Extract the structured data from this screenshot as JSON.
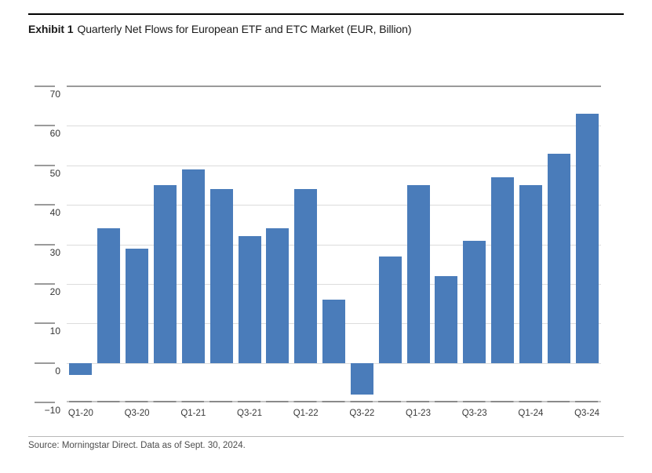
{
  "header": {
    "exhibit_label": "Exhibit 1",
    "title_rest": "Quarterly Net Flows for European ETF and ETC Market (EUR, Billion)"
  },
  "footer": {
    "source_text": "Source: Morningstar Direct. Data as of Sept. 30, 2024."
  },
  "colors": {
    "bar": "#4a7cba",
    "gridline": "#dcdcdc",
    "axis": "#9a9a9a",
    "text": "#333333"
  },
  "chart_data": {
    "type": "bar",
    "title": "Quarterly Net Flows for European ETF and ETC Market (EUR, Billion)",
    "xlabel": "",
    "ylabel": "",
    "categories": [
      "Q1-20",
      "Q2-20",
      "Q3-20",
      "Q4-20",
      "Q1-21",
      "Q2-21",
      "Q3-21",
      "Q4-21",
      "Q1-22",
      "Q2-22",
      "Q3-22",
      "Q4-22",
      "Q1-23",
      "Q2-23",
      "Q3-23",
      "Q4-23",
      "Q1-24",
      "Q2-24",
      "Q3-24"
    ],
    "values": [
      -3,
      34,
      29,
      45,
      49,
      44,
      32,
      34,
      44,
      16,
      -8,
      27,
      45,
      22,
      31,
      47,
      45,
      53,
      63
    ],
    "x_tick_labels": [
      "Q1-20",
      "Q3-20",
      "Q1-21",
      "Q3-21",
      "Q1-22",
      "Q3-22",
      "Q1-23",
      "Q3-23",
      "Q1-24",
      "Q3-24"
    ],
    "x_tick_every": 2,
    "y_ticks": [
      70,
      60,
      50,
      40,
      30,
      20,
      10,
      0,
      -10
    ],
    "ylim": [
      -10,
      70
    ],
    "grid": true,
    "legend": "none",
    "bar_color": "#4a7cba"
  }
}
